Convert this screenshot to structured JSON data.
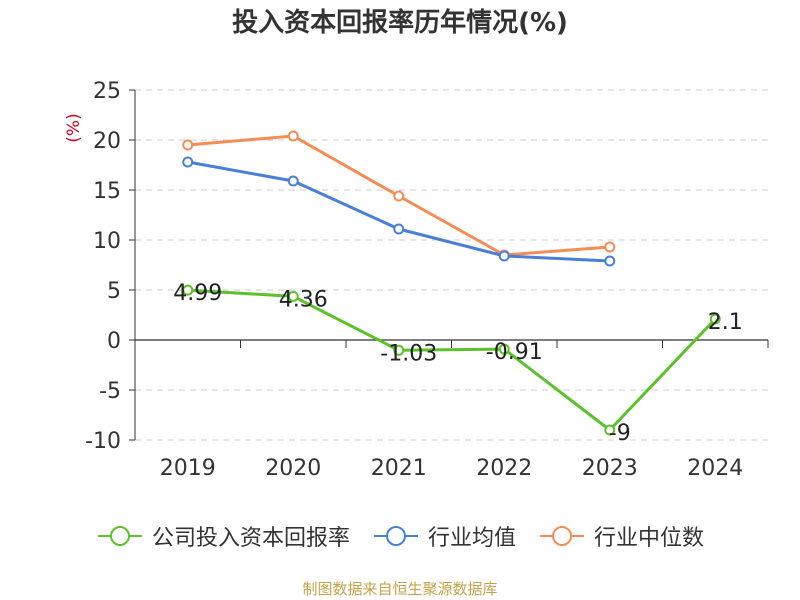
{
  "title": "投入资本回报率历年情况(%)",
  "source": "制图数据来自恒生聚源数据库",
  "chart_data": {
    "type": "line",
    "title": "投入资本回报率历年情况(%)",
    "ylabel": "(%)",
    "xlabel": "",
    "categories": [
      "2019",
      "2020",
      "2021",
      "2022",
      "2023",
      "2024"
    ],
    "ylim": [
      -10,
      25
    ],
    "yticks": [
      "25",
      "20",
      "15",
      "10",
      "5",
      "0",
      "-5",
      "-10"
    ],
    "grid": true,
    "legend_position": "bottom",
    "series": [
      {
        "name": "公司投入资本回报率",
        "color": "#5cc12a",
        "values": [
          4.99,
          4.36,
          -1.03,
          -0.91,
          -9,
          2.1
        ],
        "labels": [
          "4.99",
          "4.36",
          "-1.03",
          "-0.91",
          "-9",
          "2.1"
        ]
      },
      {
        "name": "行业均值",
        "color": "#4a7fd8",
        "values": [
          17.8,
          15.9,
          11.1,
          8.4,
          7.9,
          null
        ]
      },
      {
        "name": "行业中位数",
        "color": "#f58c55",
        "values": [
          19.5,
          20.4,
          14.4,
          8.5,
          9.3,
          null
        ]
      }
    ]
  }
}
